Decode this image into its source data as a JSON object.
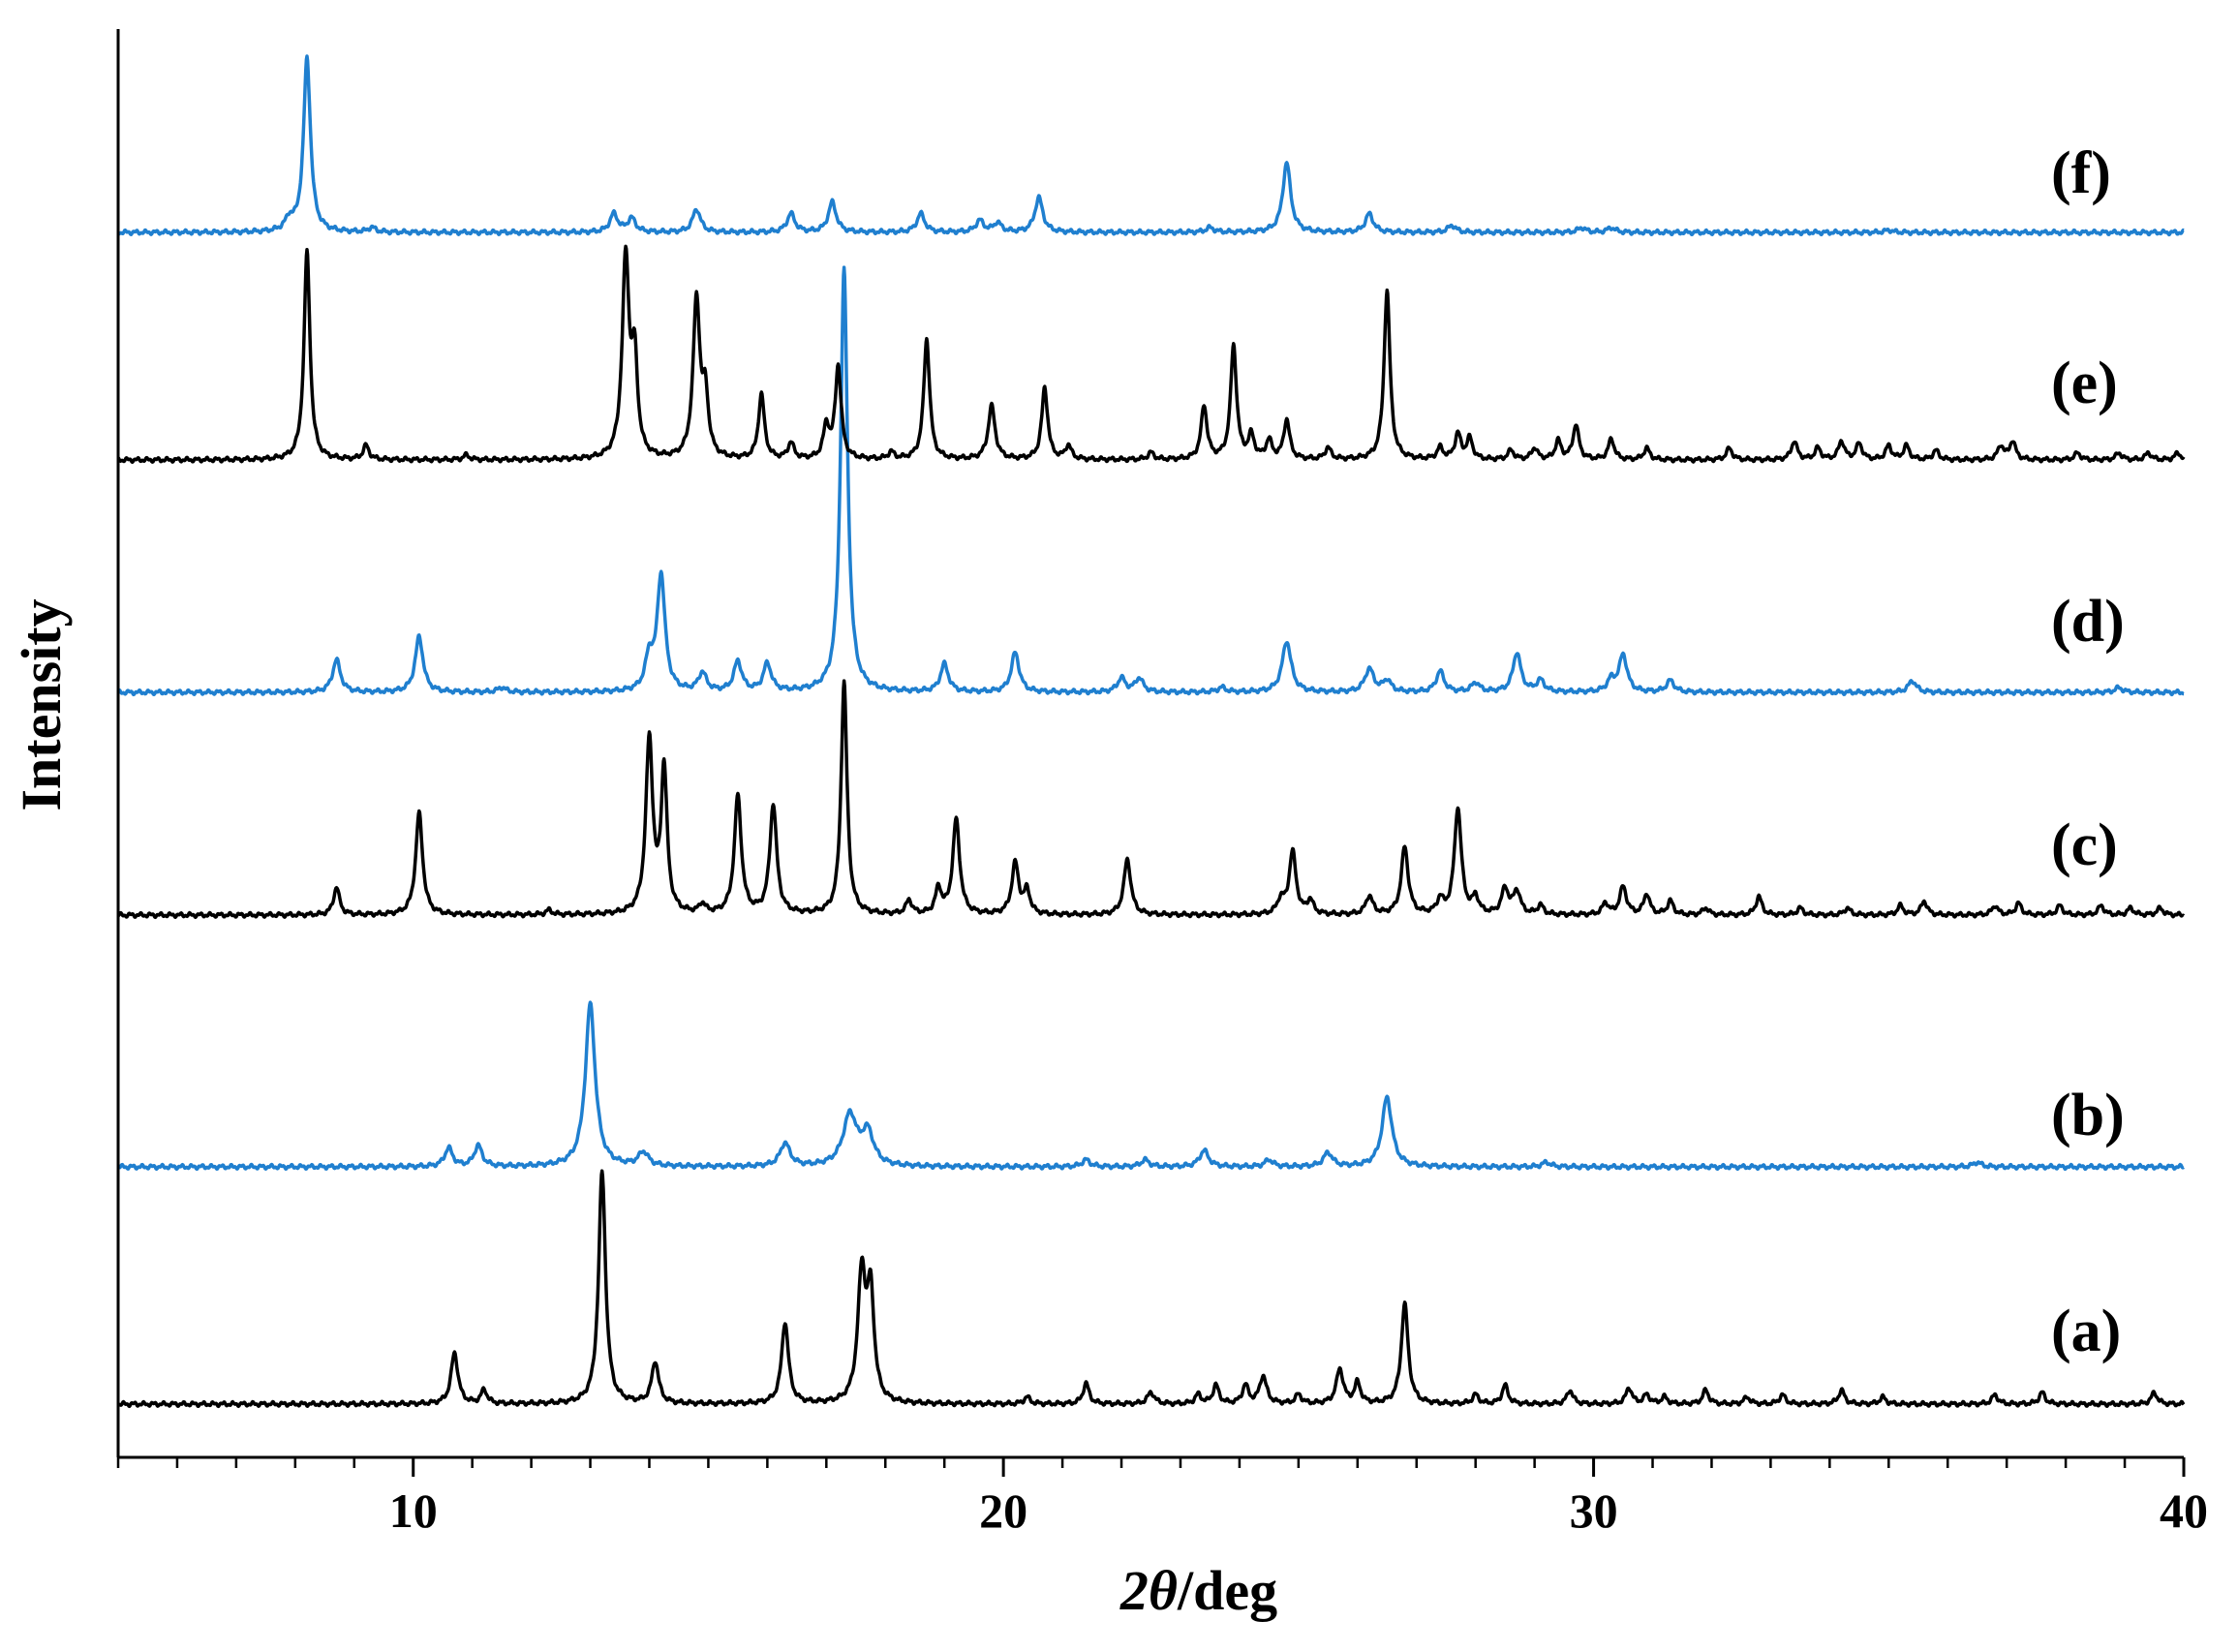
{
  "chart_data": {
    "type": "line",
    "title": "",
    "xlabel_prefix": "2",
    "xlabel_theta": "θ",
    "xlabel_unit": "/deg",
    "ylabel": "Intensity",
    "xlim": [
      5,
      40
    ],
    "xticks_major": [
      10,
      20,
      30,
      40
    ],
    "xtick_labels": [
      "10",
      "20",
      "30",
      "40"
    ],
    "xticks_minor_step": 1,
    "y_ticks": false,
    "grid": false,
    "legend": "none",
    "colors": {
      "black": "#000000",
      "blue": "#1f7fcf"
    },
    "series": [
      {
        "label": "(a)",
        "color": "black",
        "baseline": 0.0,
        "peaks": [
          [
            10.7,
            0.22,
            0.07
          ],
          [
            11.2,
            0.06,
            0.06
          ],
          [
            13.2,
            1.0,
            0.07
          ],
          [
            14.1,
            0.18,
            0.07
          ],
          [
            16.3,
            0.35,
            0.07
          ],
          [
            17.6,
            0.55,
            0.08
          ],
          [
            17.75,
            0.45,
            0.07
          ],
          [
            20.4,
            0.03,
            0.06
          ],
          [
            21.4,
            0.09,
            0.06
          ],
          [
            22.5,
            0.05,
            0.07
          ],
          [
            23.3,
            0.04,
            0.06
          ],
          [
            23.6,
            0.08,
            0.06
          ],
          [
            24.1,
            0.08,
            0.06
          ],
          [
            24.4,
            0.12,
            0.07
          ],
          [
            25.0,
            0.04,
            0.06
          ],
          [
            25.7,
            0.15,
            0.07
          ],
          [
            26.0,
            0.09,
            0.06
          ],
          [
            26.8,
            0.43,
            0.07
          ],
          [
            28.0,
            0.04,
            0.06
          ],
          [
            28.5,
            0.08,
            0.06
          ],
          [
            29.6,
            0.06,
            0.06
          ],
          [
            30.6,
            0.07,
            0.06
          ],
          [
            30.9,
            0.04,
            0.06
          ],
          [
            31.2,
            0.03,
            0.06
          ],
          [
            31.9,
            0.06,
            0.06
          ],
          [
            32.6,
            0.03,
            0.06
          ],
          [
            33.2,
            0.04,
            0.06
          ],
          [
            34.2,
            0.06,
            0.06
          ],
          [
            34.9,
            0.03,
            0.06
          ],
          [
            36.8,
            0.04,
            0.06
          ],
          [
            37.6,
            0.05,
            0.06
          ],
          [
            39.5,
            0.05,
            0.06
          ]
        ]
      },
      {
        "label": "(b)",
        "color": "blue",
        "baseline": 1.0,
        "peaks": [
          [
            10.6,
            0.08,
            0.08
          ],
          [
            11.1,
            0.09,
            0.08
          ],
          [
            13.0,
            0.7,
            0.1
          ],
          [
            13.9,
            0.06,
            0.1
          ],
          [
            16.3,
            0.1,
            0.1
          ],
          [
            17.4,
            0.22,
            0.14
          ],
          [
            17.7,
            0.14,
            0.12
          ],
          [
            21.4,
            0.03,
            0.08
          ],
          [
            22.4,
            0.03,
            0.08
          ],
          [
            23.4,
            0.07,
            0.09
          ],
          [
            24.5,
            0.03,
            0.08
          ],
          [
            25.5,
            0.06,
            0.09
          ],
          [
            26.5,
            0.3,
            0.1
          ],
          [
            29.2,
            0.02,
            0.08
          ],
          [
            36.5,
            0.02,
            0.08
          ]
        ]
      },
      {
        "label": "(c)",
        "color": "black",
        "baseline": 2.0,
        "peaks": [
          [
            8.7,
            0.12,
            0.06
          ],
          [
            10.1,
            0.44,
            0.07
          ],
          [
            12.3,
            0.02,
            0.06
          ],
          [
            14.0,
            0.75,
            0.07
          ],
          [
            14.25,
            0.62,
            0.06
          ],
          [
            14.9,
            0.04,
            0.06
          ],
          [
            15.5,
            0.51,
            0.07
          ],
          [
            16.1,
            0.47,
            0.07
          ],
          [
            17.3,
            1.0,
            0.06
          ],
          [
            18.4,
            0.06,
            0.06
          ],
          [
            18.9,
            0.11,
            0.06
          ],
          [
            19.2,
            0.41,
            0.07
          ],
          [
            20.2,
            0.22,
            0.07
          ],
          [
            20.4,
            0.1,
            0.06
          ],
          [
            22.1,
            0.24,
            0.07
          ],
          [
            24.7,
            0.06,
            0.07
          ],
          [
            24.9,
            0.27,
            0.07
          ],
          [
            25.2,
            0.06,
            0.06
          ],
          [
            26.2,
            0.08,
            0.07
          ],
          [
            26.8,
            0.29,
            0.07
          ],
          [
            27.4,
            0.06,
            0.06
          ],
          [
            27.7,
            0.46,
            0.07
          ],
          [
            28.0,
            0.07,
            0.06
          ],
          [
            28.5,
            0.11,
            0.07
          ],
          [
            28.7,
            0.1,
            0.07
          ],
          [
            29.1,
            0.04,
            0.06
          ],
          [
            30.2,
            0.05,
            0.06
          ],
          [
            30.5,
            0.12,
            0.07
          ],
          [
            30.9,
            0.09,
            0.06
          ],
          [
            31.3,
            0.06,
            0.06
          ],
          [
            31.9,
            0.03,
            0.06
          ],
          [
            32.8,
            0.08,
            0.06
          ],
          [
            33.5,
            0.03,
            0.06
          ],
          [
            34.3,
            0.03,
            0.06
          ],
          [
            35.2,
            0.04,
            0.06
          ],
          [
            35.6,
            0.06,
            0.06
          ],
          [
            36.8,
            0.04,
            0.06
          ],
          [
            37.2,
            0.05,
            0.06
          ],
          [
            37.9,
            0.04,
            0.06
          ],
          [
            38.6,
            0.04,
            0.06
          ],
          [
            39.1,
            0.03,
            0.06
          ],
          [
            39.6,
            0.03,
            0.06
          ]
        ]
      },
      {
        "label": "(d)",
        "color": "blue",
        "baseline": 3.0,
        "peaks": [
          [
            8.7,
            0.14,
            0.08
          ],
          [
            10.1,
            0.24,
            0.08
          ],
          [
            11.5,
            0.02,
            0.08
          ],
          [
            14.0,
            0.14,
            0.08
          ],
          [
            14.2,
            0.5,
            0.08
          ],
          [
            14.9,
            0.08,
            0.08
          ],
          [
            15.5,
            0.13,
            0.08
          ],
          [
            16.0,
            0.12,
            0.08
          ],
          [
            17.3,
            1.82,
            0.07
          ],
          [
            19.0,
            0.12,
            0.08
          ],
          [
            20.2,
            0.17,
            0.08
          ],
          [
            22.0,
            0.06,
            0.08
          ],
          [
            22.3,
            0.06,
            0.08
          ],
          [
            23.7,
            0.02,
            0.08
          ],
          [
            24.8,
            0.22,
            0.09
          ],
          [
            26.2,
            0.1,
            0.09
          ],
          [
            26.5,
            0.05,
            0.08
          ],
          [
            27.4,
            0.09,
            0.08
          ],
          [
            28.0,
            0.04,
            0.08
          ],
          [
            28.7,
            0.17,
            0.08
          ],
          [
            29.1,
            0.05,
            0.08
          ],
          [
            30.5,
            0.16,
            0.08
          ],
          [
            30.3,
            0.05,
            0.08
          ],
          [
            31.3,
            0.05,
            0.08
          ],
          [
            35.4,
            0.05,
            0.08
          ],
          [
            38.9,
            0.02,
            0.08
          ]
        ]
      },
      {
        "label": "(e)",
        "color": "black",
        "baseline": 4.0,
        "peaks": [
          [
            8.2,
            0.9,
            0.06
          ],
          [
            9.2,
            0.06,
            0.06
          ],
          [
            10.9,
            0.02,
            0.06
          ],
          [
            13.6,
            0.86,
            0.07
          ],
          [
            13.75,
            0.4,
            0.06
          ],
          [
            14.8,
            0.68,
            0.07
          ],
          [
            14.95,
            0.25,
            0.06
          ],
          [
            15.9,
            0.28,
            0.06
          ],
          [
            16.4,
            0.07,
            0.06
          ],
          [
            17.0,
            0.14,
            0.06
          ],
          [
            17.2,
            0.4,
            0.06
          ],
          [
            18.1,
            0.03,
            0.06
          ],
          [
            18.7,
            0.52,
            0.06
          ],
          [
            19.8,
            0.23,
            0.07
          ],
          [
            20.7,
            0.31,
            0.06
          ],
          [
            21.1,
            0.06,
            0.06
          ],
          [
            22.5,
            0.03,
            0.06
          ],
          [
            23.4,
            0.23,
            0.06
          ],
          [
            23.9,
            0.49,
            0.06
          ],
          [
            24.2,
            0.1,
            0.06
          ],
          [
            24.5,
            0.08,
            0.06
          ],
          [
            24.8,
            0.17,
            0.06
          ],
          [
            25.5,
            0.05,
            0.06
          ],
          [
            26.5,
            0.73,
            0.06
          ],
          [
            27.4,
            0.05,
            0.06
          ],
          [
            27.7,
            0.11,
            0.06
          ],
          [
            27.9,
            0.09,
            0.06
          ],
          [
            28.6,
            0.04,
            0.06
          ],
          [
            29.0,
            0.05,
            0.06
          ],
          [
            29.4,
            0.08,
            0.06
          ],
          [
            29.7,
            0.15,
            0.06
          ],
          [
            30.3,
            0.09,
            0.06
          ],
          [
            30.9,
            0.05,
            0.06
          ],
          [
            32.3,
            0.05,
            0.06
          ],
          [
            33.4,
            0.08,
            0.06
          ],
          [
            33.8,
            0.05,
            0.06
          ],
          [
            34.2,
            0.08,
            0.06
          ],
          [
            34.5,
            0.07,
            0.06
          ],
          [
            35.0,
            0.06,
            0.06
          ],
          [
            35.3,
            0.06,
            0.06
          ],
          [
            35.8,
            0.04,
            0.06
          ],
          [
            36.9,
            0.06,
            0.06
          ],
          [
            37.1,
            0.08,
            0.06
          ],
          [
            38.2,
            0.03,
            0.06
          ],
          [
            38.9,
            0.03,
            0.06
          ],
          [
            39.4,
            0.03,
            0.06
          ],
          [
            39.9,
            0.03,
            0.06
          ]
        ]
      },
      {
        "label": "(f)",
        "color": "blue",
        "baseline": 5.0,
        "peaks": [
          [
            8.2,
            0.75,
            0.07
          ],
          [
            7.9,
            0.05,
            0.08
          ],
          [
            9.3,
            0.02,
            0.07
          ],
          [
            13.4,
            0.08,
            0.08
          ],
          [
            13.7,
            0.06,
            0.08
          ],
          [
            14.8,
            0.1,
            0.08
          ],
          [
            16.4,
            0.08,
            0.08
          ],
          [
            17.1,
            0.13,
            0.08
          ],
          [
            18.6,
            0.08,
            0.08
          ],
          [
            19.6,
            0.05,
            0.08
          ],
          [
            19.9,
            0.04,
            0.08
          ],
          [
            20.6,
            0.15,
            0.08
          ],
          [
            23.5,
            0.02,
            0.08
          ],
          [
            24.8,
            0.3,
            0.08
          ],
          [
            26.2,
            0.08,
            0.08
          ],
          [
            27.6,
            0.03,
            0.08
          ],
          [
            29.8,
            0.02,
            0.08
          ],
          [
            30.3,
            0.02,
            0.08
          ],
          [
            35.0,
            0.01,
            0.08
          ]
        ]
      }
    ]
  }
}
